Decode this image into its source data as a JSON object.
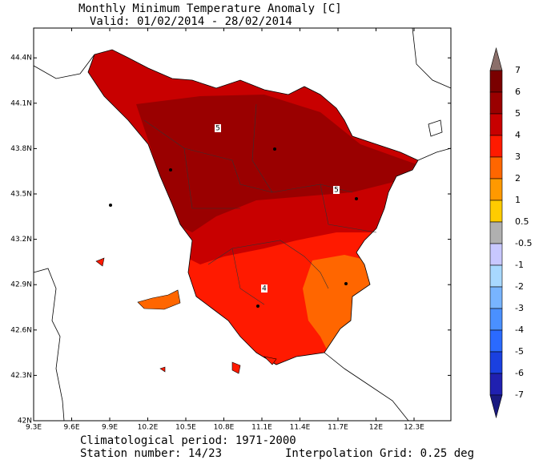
{
  "header": {
    "title": "Monthly Minimum Temperature Anomaly [C]",
    "valid": "Valid: 01/02/2014 - 28/02/2014"
  },
  "map": {
    "lon_labels": [
      "9.3E",
      "9.6E",
      "9.9E",
      "10.2E",
      "10.5E",
      "10.8E",
      "11.1E",
      "11.4E",
      "11.7E",
      "12E",
      "12.3E"
    ],
    "lat_labels": [
      "42N",
      "42.3N",
      "42.6N",
      "42.9N",
      "43.2N",
      "43.5N",
      "43.8N",
      "44.1N",
      "44.4N"
    ],
    "contour_labels": [
      "5",
      "5",
      "4"
    ]
  },
  "colorbar": {
    "labels": [
      "7",
      "6",
      "5",
      "4",
      "3",
      "2",
      "1",
      "0.5",
      "-0.5",
      "-1",
      "-2",
      "-3",
      "-4",
      "-5",
      "-6",
      "-7"
    ]
  },
  "footer": {
    "period": "Climatological period: 1971-2000",
    "stations": "Station number: 14/23",
    "grid": "Interpolation Grid: 0.25 deg"
  }
}
